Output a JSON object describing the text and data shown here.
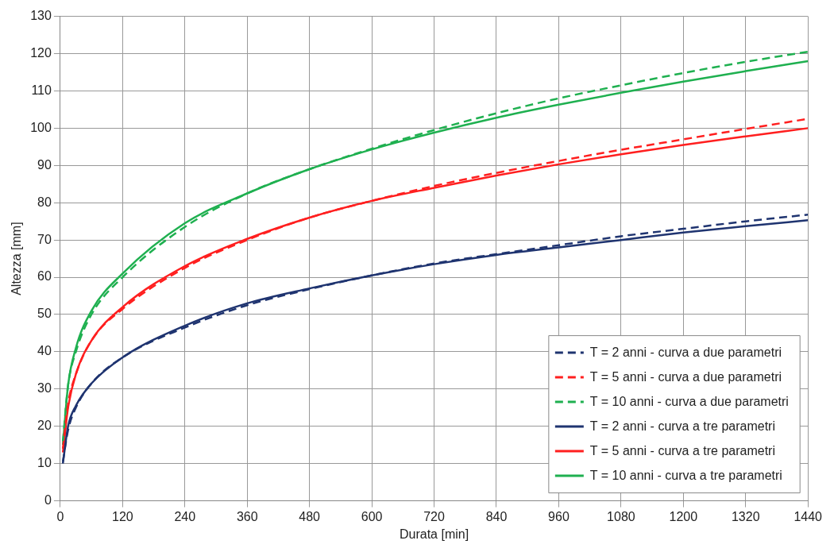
{
  "chart_data": {
    "type": "line",
    "xlabel": "Durata [min]",
    "ylabel": "Altezza [mm]",
    "x": [
      5,
      15,
      30,
      60,
      120,
      240,
      360,
      480,
      600,
      720,
      840,
      960,
      1080,
      1200,
      1320,
      1440
    ],
    "series": [
      {
        "name": "T = 2 anni - curva a due parametri",
        "color": "#1f3470",
        "line_style": "dashed",
        "values": [
          10.5,
          19,
          25,
          31.5,
          38.5,
          46.5,
          52.5,
          56.8,
          60.5,
          63.7,
          66.2,
          68.6,
          71,
          73,
          75,
          76.8
        ]
      },
      {
        "name": "T = 5 anni - curva a due parametri",
        "color": "#ff1f1f",
        "line_style": "dashed",
        "values": [
          14,
          26,
          34,
          43,
          51.5,
          62.5,
          70,
          76,
          80.5,
          84.5,
          88,
          91.2,
          94.2,
          97,
          99.8,
          102.5
        ]
      },
      {
        "name": "T = 10 anni - curva a due parametri",
        "color": "#1fb050",
        "line_style": "dashed",
        "values": [
          16,
          31,
          40,
          50,
          60,
          73.5,
          82.5,
          89,
          94.5,
          99.5,
          104,
          108,
          111.5,
          114.8,
          117.8,
          120.5
        ]
      },
      {
        "name": "T = 2 anni - curva a tre parametri",
        "color": "#1f3470",
        "line_style": "solid",
        "values": [
          10,
          20,
          25.5,
          31.5,
          38.5,
          47,
          53,
          57,
          60.5,
          63.5,
          66,
          68,
          70,
          72,
          73.7,
          75.3
        ]
      },
      {
        "name": "T = 5 anni - curva a tre parametri",
        "color": "#ff1f1f",
        "line_style": "solid",
        "values": [
          13,
          25,
          34,
          43,
          52,
          63,
          70.3,
          76,
          80.5,
          84,
          87.3,
          90.3,
          93,
          95.5,
          97.8,
          100
        ]
      },
      {
        "name": "T = 10 anni - curva a tre parametri",
        "color": "#1fb050",
        "line_style": "solid",
        "values": [
          15,
          31,
          41,
          51,
          61,
          74.5,
          82.5,
          89,
          94.3,
          98.8,
          102.8,
          106.3,
          109.5,
          112.5,
          115.3,
          118
        ]
      }
    ],
    "xlim": [
      0,
      1440
    ],
    "xticks": [
      0,
      120,
      240,
      360,
      480,
      600,
      720,
      840,
      960,
      1080,
      1200,
      1320,
      1440
    ],
    "ylim": [
      0,
      130
    ],
    "yticks": [
      0,
      10,
      20,
      30,
      40,
      50,
      60,
      70,
      80,
      90,
      100,
      110,
      120,
      130
    ],
    "grid": true,
    "legend": "bottom right",
    "marker": "none"
  }
}
